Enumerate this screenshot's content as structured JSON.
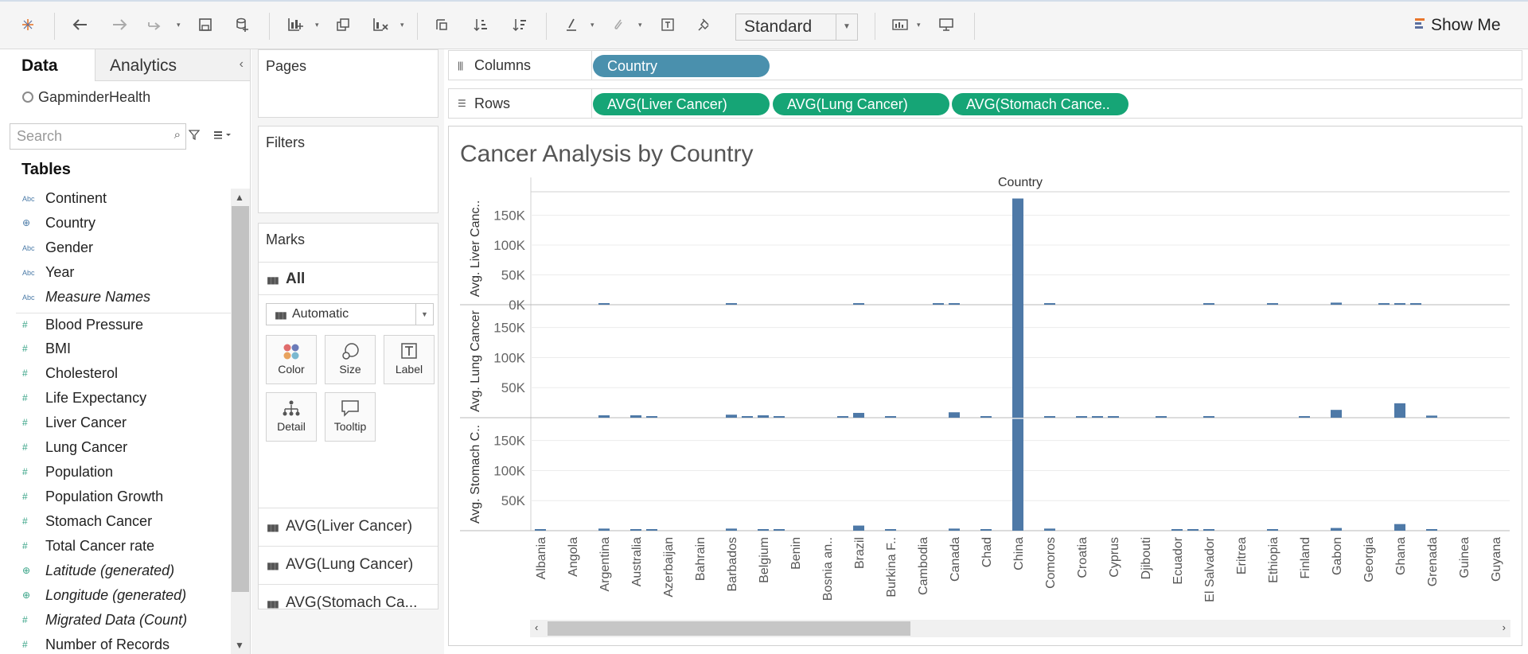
{
  "toolbar": {
    "view_mode": "Standard",
    "show_me_label": "Show Me",
    "icons": [
      "tableau-logo-icon",
      "undo-icon",
      "redo-icon",
      "replay-icon",
      "save-icon",
      "new-datasource-icon",
      "new-worksheet-icon",
      "duplicate-sheet-icon",
      "clear-sheet-icon",
      "swap-icon",
      "sort-ascending-icon",
      "sort-descending-icon",
      "highlight-icon",
      "group-icon",
      "text-label-icon",
      "pin-icon",
      "fit-icon",
      "presentation-icon"
    ]
  },
  "data_pane": {
    "tabs": [
      "Data",
      "Analytics"
    ],
    "datasource": "GapminderHealth",
    "search_placeholder": "Search",
    "tables_heading": "Tables",
    "dimensions": [
      {
        "name": "Continent",
        "type": "abc"
      },
      {
        "name": "Country",
        "type": "globe"
      },
      {
        "name": "Gender",
        "type": "abc"
      },
      {
        "name": "Year",
        "type": "abc"
      },
      {
        "name": "Measure Names",
        "type": "abc",
        "italic": true
      }
    ],
    "measures": [
      {
        "name": "Blood Pressure",
        "type": "hash"
      },
      {
        "name": "BMI",
        "type": "hash"
      },
      {
        "name": "Cholesterol",
        "type": "hash"
      },
      {
        "name": "Life Expectancy",
        "type": "hash"
      },
      {
        "name": "Liver Cancer",
        "type": "hash"
      },
      {
        "name": "Lung Cancer",
        "type": "hash"
      },
      {
        "name": "Population",
        "type": "hash"
      },
      {
        "name": "Population Growth",
        "type": "hash"
      },
      {
        "name": "Stomach Cancer",
        "type": "hash"
      },
      {
        "name": "Total Cancer rate",
        "type": "hash"
      },
      {
        "name": "Latitude (generated)",
        "type": "globe",
        "italic": true
      },
      {
        "name": "Longitude (generated)",
        "type": "globe",
        "italic": true
      },
      {
        "name": "Migrated Data (Count)",
        "type": "hash",
        "italic": true
      },
      {
        "name": "Number of Records",
        "type": "hash"
      }
    ]
  },
  "cards": {
    "pages": "Pages",
    "filters": "Filters",
    "marks": "Marks",
    "marks_all": "All",
    "mark_type": "Automatic",
    "mark_buttons": [
      "Color",
      "Size",
      "Label",
      "Detail",
      "Tooltip"
    ],
    "mark_pills": [
      "AVG(Liver Cancer)",
      "AVG(Lung Cancer)",
      "AVG(Stomach Ca..."
    ]
  },
  "shelves": {
    "columns_label": "Columns",
    "rows_label": "Rows",
    "columns_pills": [
      "Country"
    ],
    "rows_pills": [
      "AVG(Liver Cancer)",
      "AVG(Lung Cancer)",
      "AVG(Stomach Cance.."
    ]
  },
  "viz": {
    "title": "Cancer Analysis by Country"
  },
  "chart_data": {
    "type": "bar",
    "title": "Cancer Analysis by Country",
    "header": "Country",
    "categories": [
      "Albania",
      "Angola",
      "Argentina",
      "Australia",
      "Azerbaijan",
      "Bahrain",
      "Barbados",
      "Belgium",
      "Benin",
      "Bosnia an..",
      "Brazil",
      "Burkina F..",
      "Cambodia",
      "Canada",
      "Chad",
      "China",
      "Comoros",
      "Croatia",
      "Cyprus",
      "Djibouti",
      "Ecuador",
      "El Salvador",
      "Eritrea",
      "Ethiopia",
      "Finland",
      "Gabon",
      "Georgia",
      "Ghana",
      "Grenada",
      "Guinea",
      "Guyana"
    ],
    "ylim": [
      0,
      180000
    ],
    "series": [
      {
        "name": "Avg. Liver Canc..",
        "ticks": [
          "150K",
          "100K",
          "50K",
          "0K"
        ],
        "tick_values": [
          150000,
          100000,
          50000,
          0
        ],
        "values": [
          0,
          0,
          1500,
          0,
          0,
          0,
          1500,
          0,
          0,
          0,
          2500,
          0,
          0,
          1500,
          0,
          178000,
          1500,
          0,
          0,
          0,
          0,
          2500,
          0,
          1500,
          0,
          3500,
          0,
          2500,
          0,
          0,
          0
        ],
        "extra": [
          0,
          0,
          0,
          0,
          0,
          0,
          0,
          0,
          0,
          0,
          0,
          0,
          1500,
          0,
          0,
          0,
          0,
          0,
          0,
          0,
          0,
          0,
          0,
          0,
          0,
          0,
          1500,
          1500,
          0,
          0,
          0
        ]
      },
      {
        "name": "Avg. Lung Cancer",
        "ticks": [
          "150K",
          "100K",
          "50K"
        ],
        "tick_values": [
          150000,
          100000,
          50000
        ],
        "values": [
          0,
          0,
          4000,
          4000,
          0,
          0,
          5000,
          4000,
          0,
          0,
          8000,
          1500,
          0,
          9000,
          1500,
          188000,
          1500,
          1500,
          1500,
          0,
          0,
          1500,
          0,
          0,
          1500,
          13000,
          0,
          24000,
          3500,
          0,
          0
        ],
        "extra": [
          0,
          0,
          0,
          2000,
          0,
          0,
          2500,
          2500,
          0,
          1500,
          0,
          0,
          0,
          0,
          0,
          0,
          0,
          1500,
          0,
          1500,
          0,
          0,
          0,
          0,
          0,
          0,
          0,
          0,
          0,
          0,
          0
        ]
      },
      {
        "name": "Avg. Stomach C..",
        "ticks": [
          "150K",
          "100K",
          "50K"
        ],
        "tick_values": [
          150000,
          100000,
          50000
        ],
        "values": [
          1500,
          0,
          3500,
          2000,
          0,
          0,
          3500,
          2000,
          0,
          0,
          8500,
          1500,
          0,
          3500,
          1500,
          186000,
          3500,
          0,
          0,
          0,
          1500,
          1500,
          0,
          1500,
          0,
          4500,
          0,
          11000,
          1500,
          0,
          0
        ],
        "extra": [
          0,
          0,
          0,
          2000,
          0,
          0,
          0,
          2000,
          0,
          0,
          0,
          0,
          0,
          0,
          0,
          0,
          0,
          0,
          0,
          0,
          1500,
          0,
          0,
          0,
          0,
          0,
          0,
          0,
          0,
          0,
          0
        ]
      }
    ]
  }
}
